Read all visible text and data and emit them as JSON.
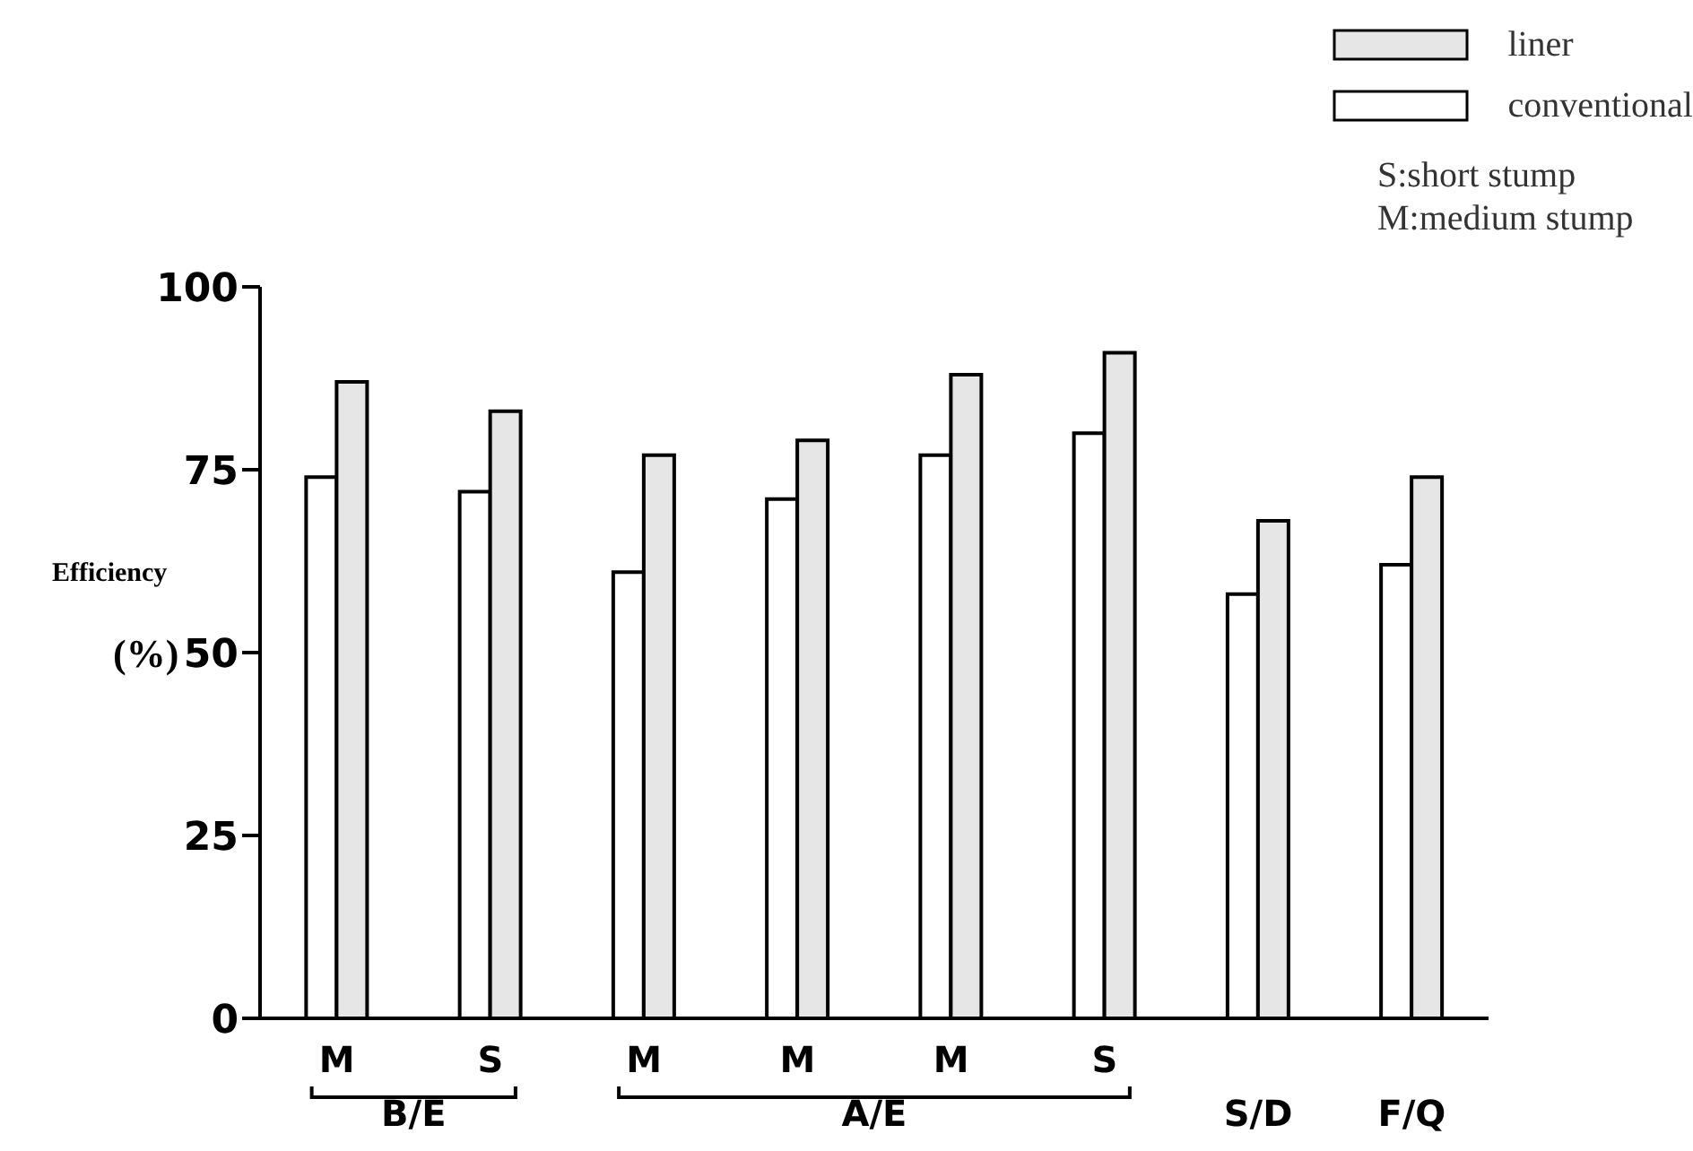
{
  "chart_data": {
    "type": "bar",
    "ylabel": "Efficiency (%)",
    "categories": [
      "M",
      "S",
      "M",
      "M",
      "M",
      "S",
      "S/D",
      "F/Q"
    ],
    "series": [
      {
        "name": "conventional",
        "color": "#ffffff",
        "values": [
          74,
          72,
          61,
          71,
          77,
          80,
          58,
          62
        ]
      },
      {
        "name": "liner",
        "color": "#e6e6e6",
        "values": [
          87,
          83,
          77,
          79,
          88,
          91,
          68,
          74
        ]
      }
    ],
    "ylim": [
      0,
      100
    ],
    "yticks": [
      0,
      25,
      50,
      75,
      100
    ],
    "legend": "top right",
    "annotations": [
      "B/E",
      "A/E",
      "S:short stump",
      "M:medium stump"
    ]
  }
}
